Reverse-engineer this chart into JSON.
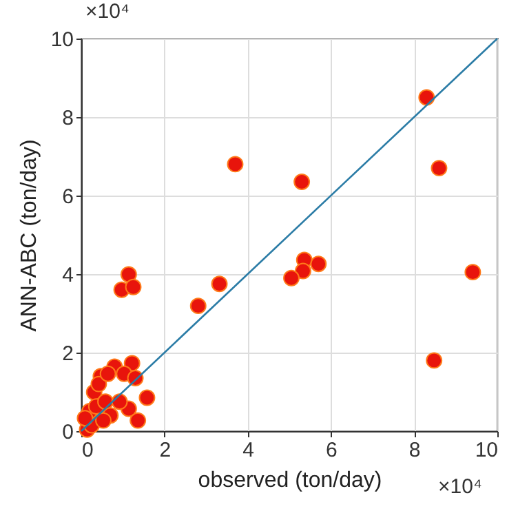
{
  "chart_data": {
    "type": "scatter",
    "xlabel": "observed (ton/day)",
    "ylabel": "ANN-ABC (ton/day)",
    "annotations": [
      "×10⁴",
      "×10⁴"
    ],
    "xlim": [
      0,
      10
    ],
    "ylim": [
      0,
      10
    ],
    "xticks": [
      0,
      2,
      4,
      6,
      8,
      10
    ],
    "yticks": [
      0,
      2,
      4,
      6,
      8,
      10
    ],
    "grid": true,
    "marker": "circle",
    "series": [
      {
        "color": "#e8140c",
        "x": [
          3.7,
          5.3,
          8.3,
          8.6,
          9.41,
          8.48,
          5.36,
          5.7,
          5.33,
          5.05,
          3.32,
          2.81,
          1.14,
          0.97,
          1.25,
          1.22,
          1.58,
          1.36,
          1.14,
          0.8,
          0.47,
          0.31,
          0.2,
          0.14,
          0.25,
          0.36,
          0.58,
          0.7,
          0.92,
          1.03,
          1.3,
          0.53,
          0.42,
          0.09,
          0.64
        ],
        "values": [
          6.8,
          6.35,
          8.5,
          6.7,
          4.05,
          1.8,
          4.36,
          4.26,
          4.08,
          3.9,
          3.75,
          3.19,
          3.99,
          3.6,
          3.67,
          1.73,
          0.85,
          0.27,
          0.57,
          1.64,
          1.4,
          0.99,
          0.51,
          0.04,
          0.15,
          0.63,
          0.75,
          0.4,
          0.75,
          1.46,
          1.35,
          0.27,
          1.2,
          0.33,
          1.46
        ]
      },
      {
        "type": "line",
        "marker": "none",
        "color": "#2b7ca6",
        "x": [
          0,
          10
        ],
        "values": [
          0,
          10
        ]
      }
    ]
  }
}
